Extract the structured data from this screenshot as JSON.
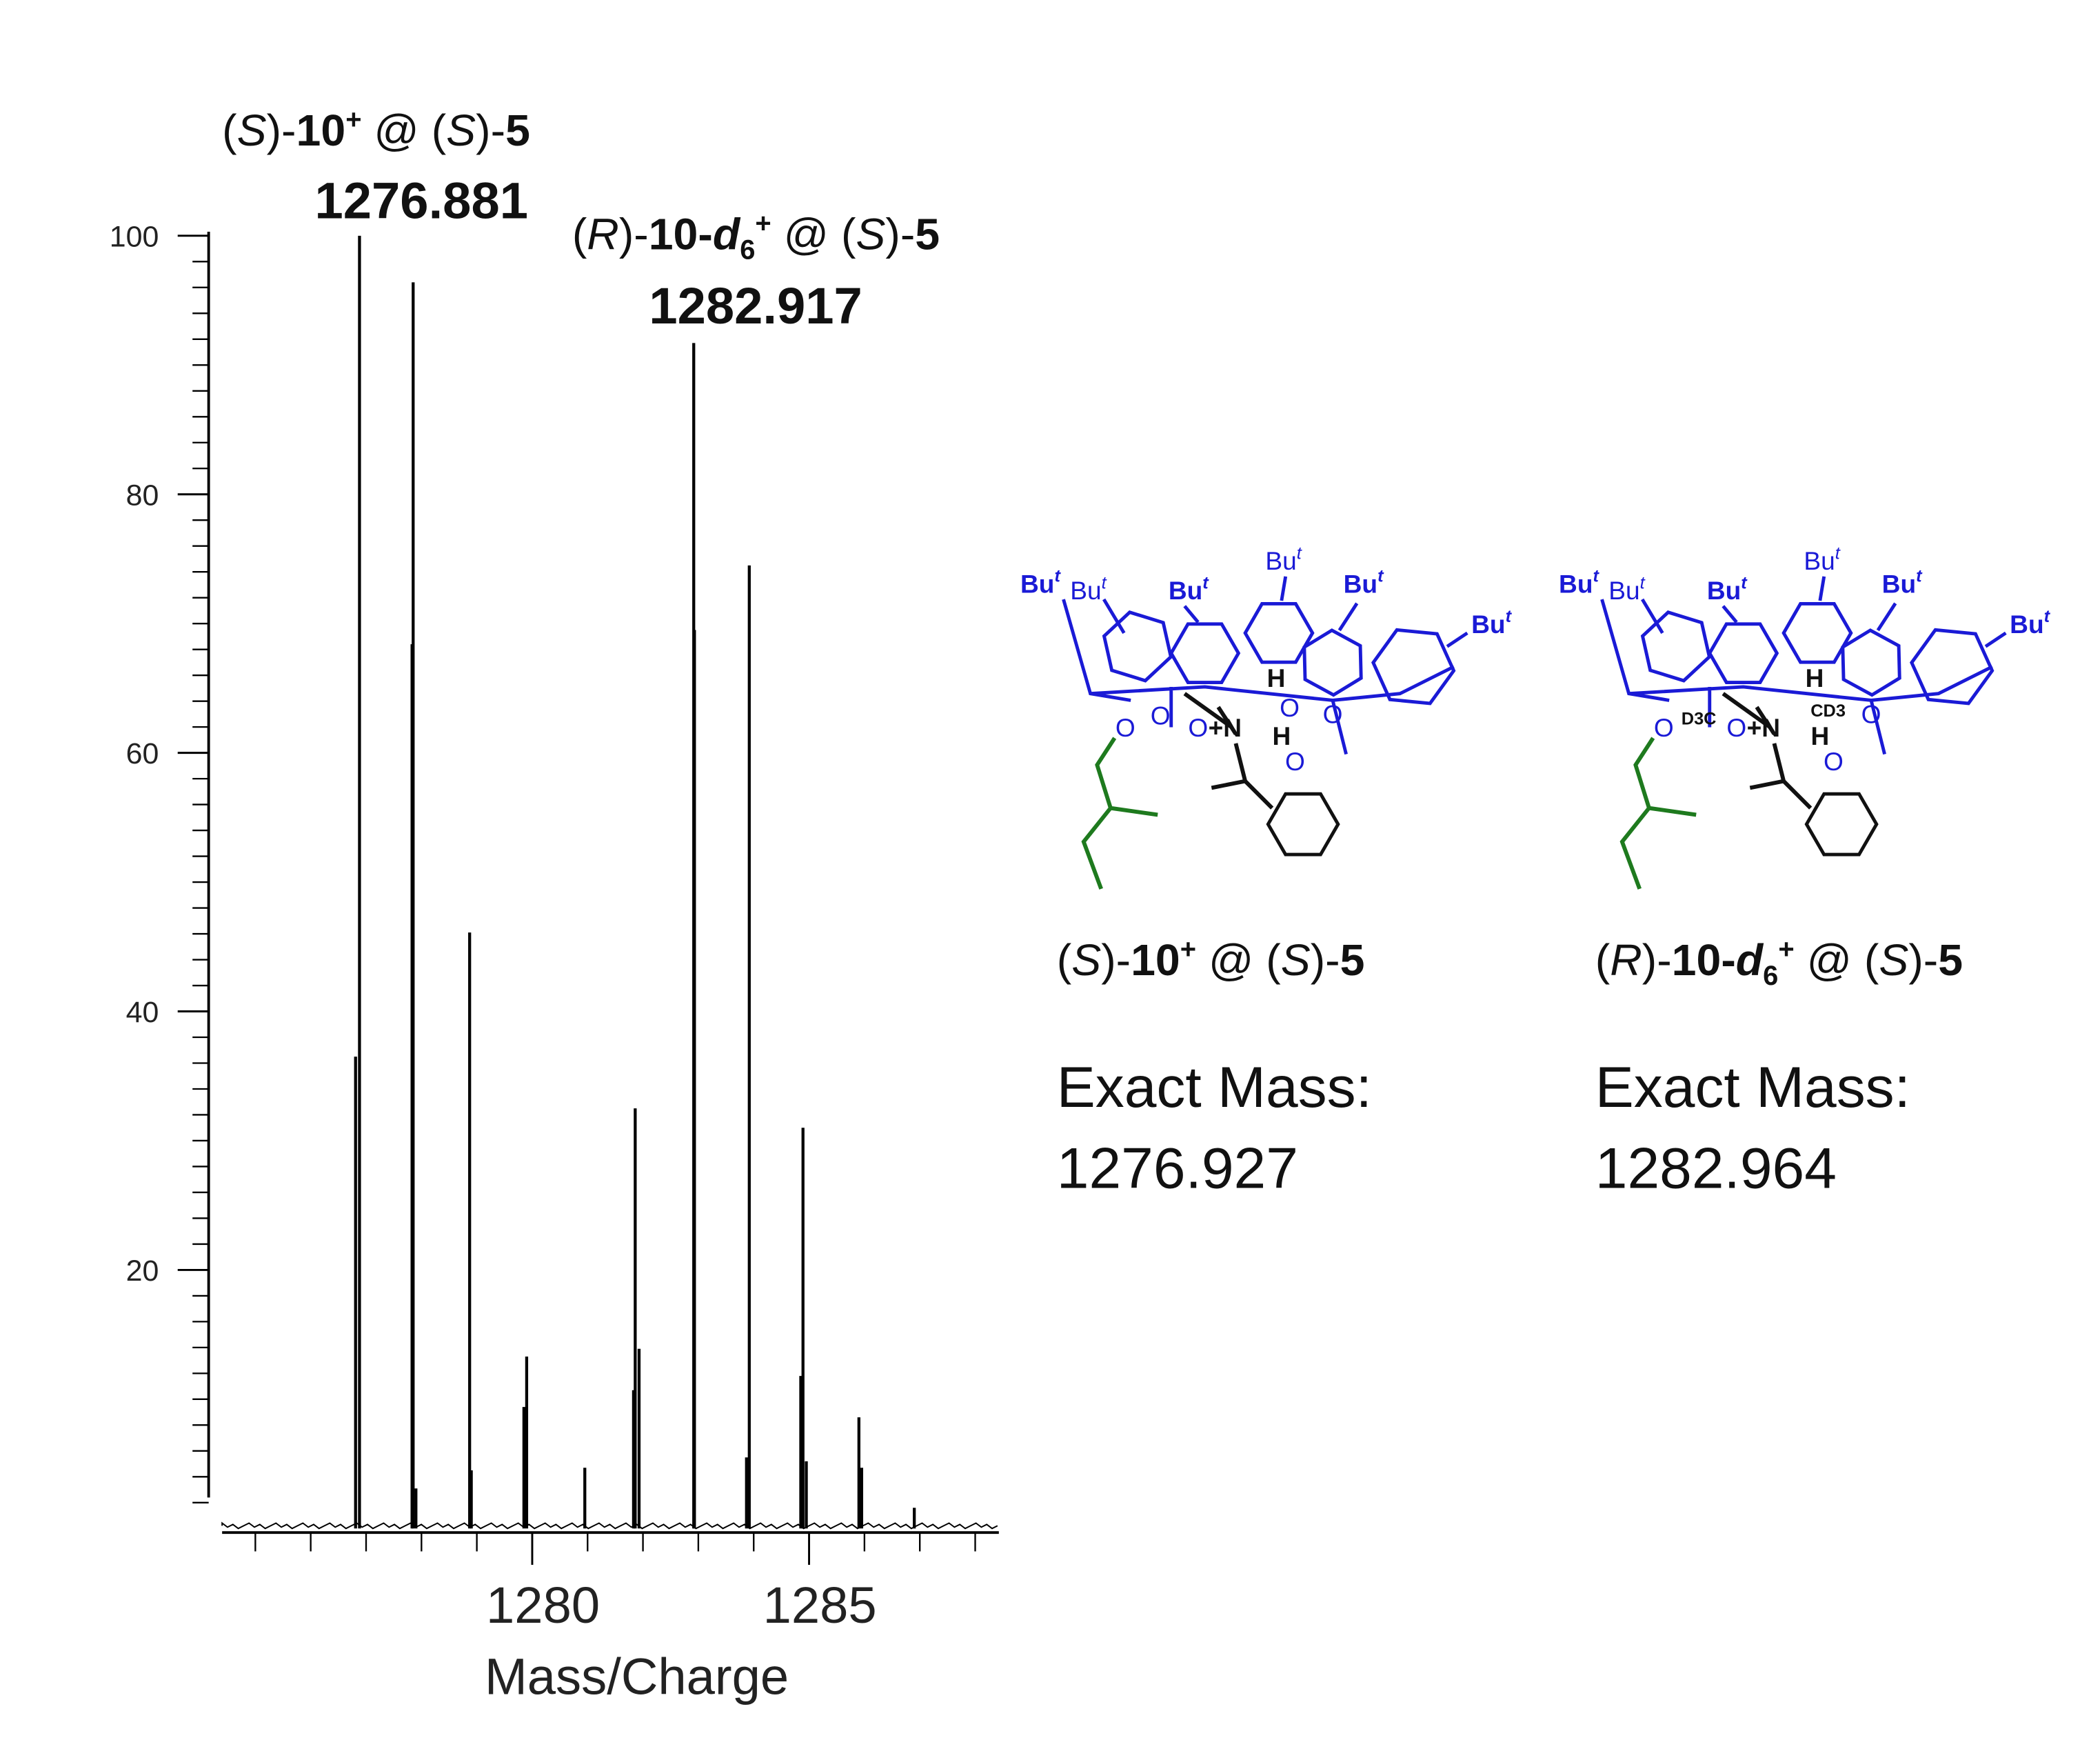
{
  "chart_data": {
    "type": "stick",
    "xlabel": "Mass/Charge",
    "xlim": [
      1274.4,
      1288.5
    ],
    "ylim": [
      0,
      100
    ],
    "xticks": [
      1280,
      1285
    ],
    "xminorticks": [
      1275,
      1276,
      1277,
      1278,
      1279,
      1281,
      1282,
      1283,
      1284,
      1286,
      1287,
      1288
    ],
    "yticks": [
      20,
      40,
      60,
      80,
      100
    ],
    "yminorticks": [
      2,
      4,
      6,
      8,
      10,
      12,
      14,
      16,
      18,
      22,
      24,
      26,
      28,
      30,
      32,
      34,
      36,
      38,
      42,
      44,
      46,
      48,
      50,
      52,
      54,
      56,
      58,
      62,
      64,
      66,
      68,
      70,
      72,
      74,
      76,
      78,
      82,
      84,
      86,
      88,
      90,
      92,
      94,
      96,
      98
    ],
    "color": "#000000",
    "x": [
      1276.81,
      1276.881,
      1277.83,
      1277.85,
      1277.9,
      1278.87,
      1278.9,
      1279.85,
      1279.9,
      1280.95,
      1281.83,
      1281.86,
      1281.93,
      1282.917,
      1282.93,
      1283.87,
      1283.92,
      1284.85,
      1284.89,
      1284.95,
      1285.9,
      1285.95,
      1286.9
    ],
    "values": [
      36.5,
      100,
      68.4,
      96.4,
      3.1,
      46.1,
      4.5,
      9.4,
      13.3,
      4.7,
      10.7,
      32.5,
      13.9,
      91.7,
      69.5,
      5.5,
      74.5,
      11.8,
      31.0,
      5.2,
      8.6,
      4.7,
      1.6
    ],
    "annotations": [
      {
        "x": 1276.881,
        "label": "1276.881",
        "name_parts": [
          "(",
          "S",
          ")-",
          "10",
          "+",
          " @ (",
          "S",
          ")-",
          "5"
        ],
        "name_styles": [
          "n",
          "i",
          "n",
          "b",
          "sup",
          "n",
          "i",
          "n",
          "b"
        ]
      },
      {
        "x": 1282.917,
        "label": "1282.917",
        "name_parts": [
          "(",
          "R",
          ")-",
          "10-",
          "d",
          "6",
          "+",
          " @ (",
          "S",
          ")-",
          "5"
        ],
        "name_styles": [
          "n",
          "i",
          "n",
          "b",
          "bi",
          "bsub",
          "sup",
          "n",
          "i",
          "n",
          "b"
        ]
      }
    ]
  },
  "structures": [
    {
      "tbu_labels": [
        {
          "text": "Bu",
          "sup": "t",
          "bold": true
        },
        {
          "text": "Bu",
          "sup": "t",
          "bold": false
        },
        {
          "text": "Bu",
          "sup": "t",
          "bold": true
        },
        {
          "text": "Bu",
          "sup": "t",
          "bold": false
        },
        {
          "text": "Bu",
          "sup": "t",
          "bold": true
        },
        {
          "text": "Bu",
          "sup": "t",
          "bold": true
        }
      ],
      "atoms": [
        "O",
        "O",
        "O",
        "+N",
        "H",
        "O",
        "O",
        "H",
        "O"
      ],
      "caption_parts": [
        "(",
        "S",
        ")-",
        "10",
        "+",
        " @ (",
        "S",
        ")-",
        "5"
      ],
      "caption_styles": [
        "n",
        "i",
        "n",
        "b",
        "sup",
        "n",
        "i",
        "n",
        "b"
      ],
      "mass_title": "Exact Mass:",
      "mass": "1276.927"
    },
    {
      "tbu_labels": [
        {
          "text": "Bu",
          "sup": "t",
          "bold": true
        },
        {
          "text": "Bu",
          "sup": "t",
          "bold": false
        },
        {
          "text": "Bu",
          "sup": "t",
          "bold": true
        },
        {
          "text": "Bu",
          "sup": "t",
          "bold": false
        },
        {
          "text": "Bu",
          "sup": "t",
          "bold": true
        },
        {
          "text": "Bu",
          "sup": "t",
          "bold": true
        }
      ],
      "atoms": [
        "O",
        "D3C",
        "O",
        "+N",
        "H",
        "CD3",
        "O",
        "H",
        "O"
      ],
      "caption_parts": [
        "(",
        "R",
        ")-",
        "10-",
        "d",
        "6",
        "+",
        " @ (",
        "S",
        ")-",
        "5"
      ],
      "caption_styles": [
        "n",
        "i",
        "n",
        "b",
        "bi",
        "bsub",
        "sup",
        "n",
        "i",
        "n",
        "b"
      ],
      "mass_title": "Exact Mass:",
      "mass": "1282.964"
    }
  ]
}
